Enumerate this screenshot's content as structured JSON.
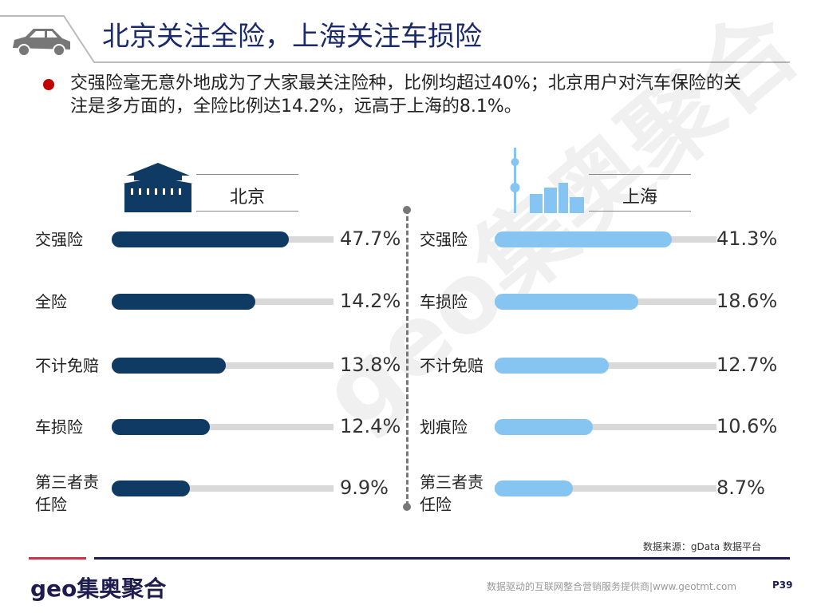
{
  "header": {
    "title": "北京关注全险，上海关注车损险"
  },
  "bullet": "交强险毫无意外地成为了大家最关注险种，比例均超过40%；北京用户对汽车保险的关注是多方面的，全险比例达14.2%，远高于上海的8.1%。",
  "colors": {
    "beijing": "#0f3a64",
    "shanghai": "#86c5f2",
    "track": "#d9d9d9",
    "title": "#1a2a6c",
    "bullet": "#c00000"
  },
  "chart_data": [
    {
      "type": "bar",
      "orientation": "horizontal",
      "title": "北京",
      "categories": [
        "交强险",
        "全险",
        "不计免赔",
        "车损险",
        "第三者责任险"
      ],
      "values": [
        47.7,
        14.2,
        13.8,
        12.4,
        9.9
      ],
      "value_labels": [
        "47.7%",
        "14.2%",
        "13.8%",
        "12.4%",
        "9.9%"
      ],
      "unit": "%"
    },
    {
      "type": "bar",
      "orientation": "horizontal",
      "title": "上海",
      "categories": [
        "交强险",
        "车损险",
        "不计免赔",
        "划痕险",
        "第三者责任险"
      ],
      "values": [
        41.3,
        18.6,
        12.7,
        10.6,
        8.7
      ],
      "value_labels": [
        "41.3%",
        "18.6%",
        "12.7%",
        "10.6%",
        "8.7%"
      ],
      "unit": "%"
    }
  ],
  "footer": {
    "source": "数据来源：gData  数据平台",
    "logo": "geo集奥聚合",
    "tagline": "数据驱动的互联网整合营销服务提供商|www.geotmt.com",
    "page": "P39"
  }
}
